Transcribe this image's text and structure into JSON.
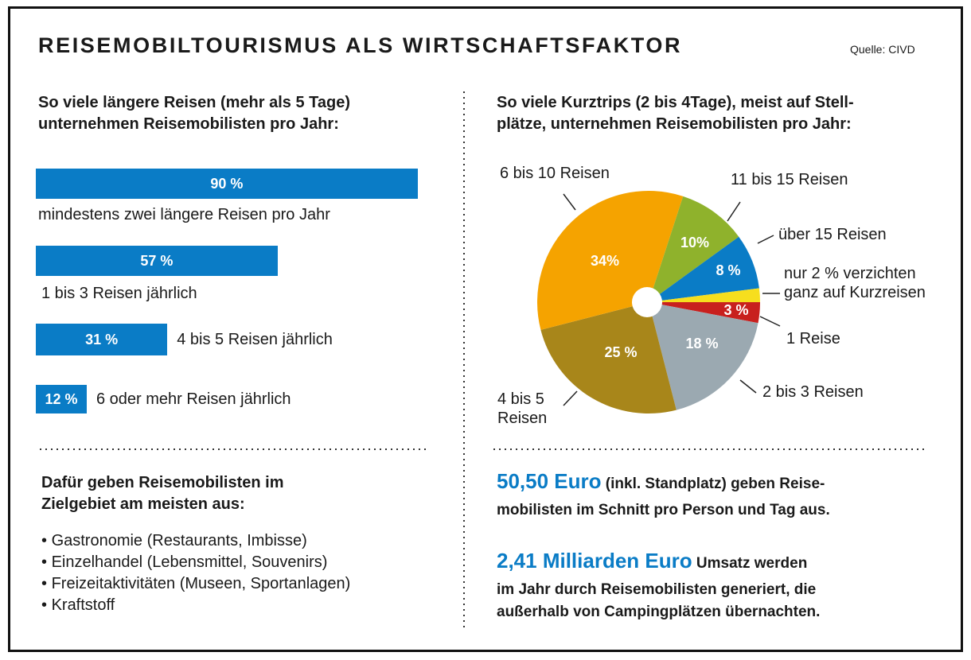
{
  "header": {
    "title": "REISEMOBILTOURISMUS ALS WIRTSCHAFTSFAKTOR",
    "source": "Quelle: CIVD"
  },
  "chart_data": [
    {
      "type": "bar",
      "title": [
        "So viele längere Reisen (mehr als 5 Tage)",
        "unternehmen Reisemobilisten pro Jahr:"
      ],
      "categories": [
        "mindestens zwei längere Reisen pro Jahr",
        "1 bis 3 Reisen jährlich",
        "4 bis 5 Reisen jährlich",
        "6 oder mehr Reisen jährlich"
      ],
      "values": [
        90,
        57,
        31,
        12
      ],
      "value_labels": [
        "90 %",
        "57 %",
        "31 %",
        "12 %"
      ],
      "color": "#0a7cc6"
    },
    {
      "type": "pie",
      "title": [
        "So viele Kurztrips (2 bis 4Tage), meist auf Stell-",
        "plätze, unternehmen Reisemobilisten pro Jahr:"
      ],
      "categories": [
        "1 Reise",
        "2 bis 3 Reisen",
        "4 bis 5 Reisen",
        "6 bis 10 Reisen",
        "11 bis 15 Reisen",
        "über 15 Reisen",
        "nur 2 % verzichten ganz auf Kurzreisen"
      ],
      "values": [
        3,
        18,
        25,
        34,
        10,
        8,
        2
      ],
      "value_labels": [
        "3 %",
        "18 %",
        "25 %",
        "34%",
        "10%",
        "8 %",
        null
      ],
      "colors": [
        "#c8201e",
        "#9ba9b1",
        "#a8861a",
        "#f5a300",
        "#8fb22c",
        "#0a7cc6",
        "#f6de1e"
      ]
    }
  ],
  "spending": {
    "title": [
      "Dafür geben Reisemobilisten im",
      "Zielgebiet am meisten aus:"
    ],
    "items": [
      "Gastronomie (Restaurants, Imbisse)",
      "Einzelhandel (Lebensmittel, Souvenirs)",
      "Freizeitaktivitäten (Museen, Sportanlagen)",
      "Kraftstoff"
    ]
  },
  "facts": [
    {
      "highlight": "50,50 Euro",
      "text": [
        "(inkl. Standplatz) geben Reise-",
        "mobilisten im Schnitt pro Person und Tag aus."
      ]
    },
    {
      "highlight": "2,41 Milliarden Euro",
      "text": [
        "Umsatz werden",
        "im Jahr durch Reisemobilisten generiert, die",
        "außerhalb von Campingplätzen übernachten."
      ]
    }
  ]
}
